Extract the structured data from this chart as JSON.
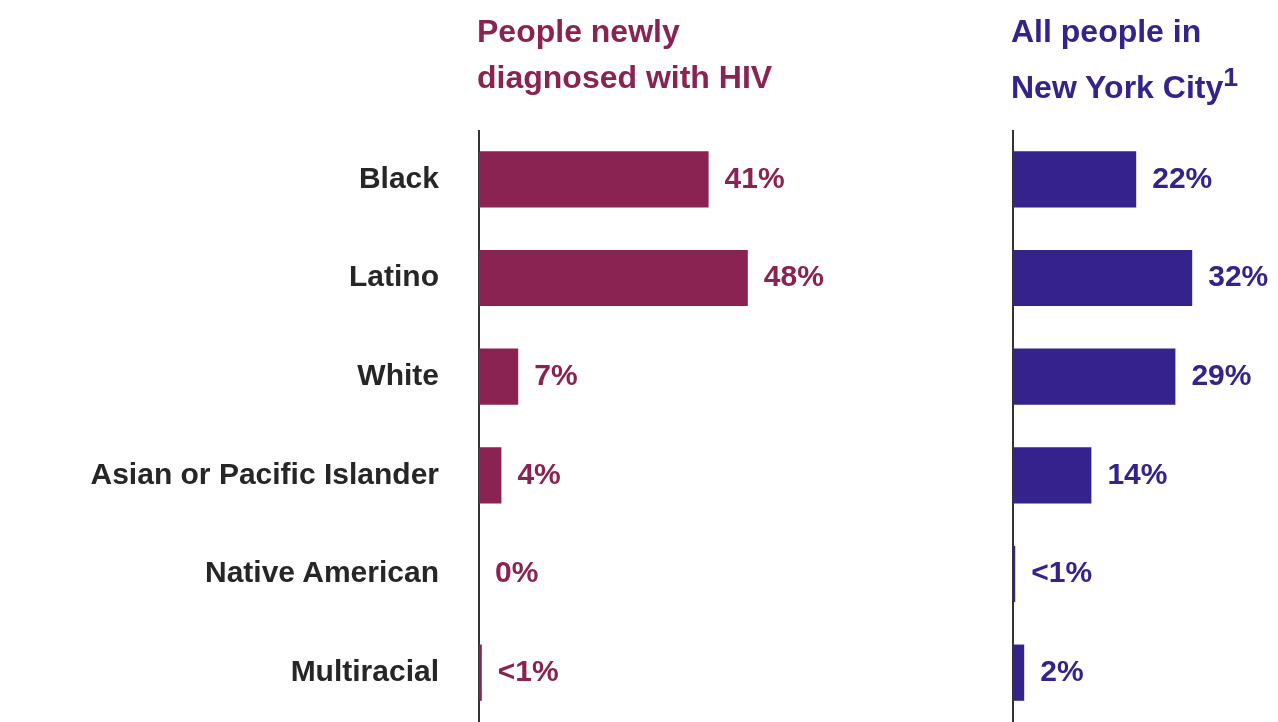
{
  "chart_data": [
    {
      "type": "bar",
      "orientation": "horizontal",
      "title": "People newly diagnosed with HIV",
      "categories": [
        "Black",
        "Latino",
        "White",
        "Asian or Pacific Islander",
        "Native American",
        "Multiracial"
      ],
      "values": [
        41,
        48,
        7,
        4,
        0,
        0.5
      ],
      "value_labels": [
        "41%",
        "48%",
        "7%",
        "4%",
        "0%",
        "<1%"
      ],
      "color": "#8a2252",
      "tick_labels": "y"
    },
    {
      "type": "bar",
      "orientation": "horizontal",
      "title": "All people in New York City$^{1}$",
      "categories": [
        null,
        null,
        null,
        null,
        null,
        null
      ],
      "values": [
        22,
        32,
        29,
        14,
        0.4,
        2
      ],
      "value_labels": [
        "22%",
        "32%",
        "29%",
        "14%",
        "<1%",
        "2%"
      ],
      "color": "#35228a",
      "tick_labels": false
    }
  ]
}
